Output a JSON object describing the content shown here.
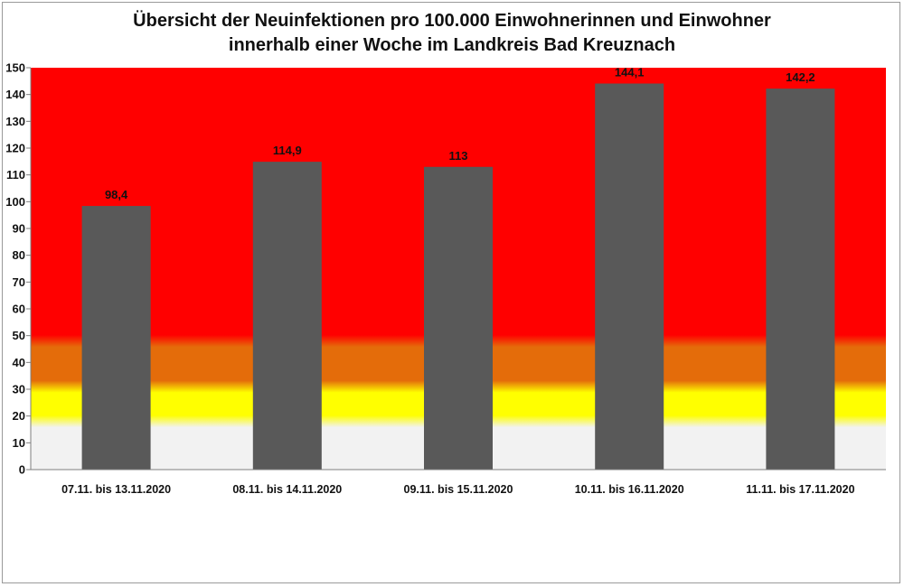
{
  "chart_data": {
    "type": "bar",
    "title": "Übersicht der Neuinfektionen pro 100.000 Einwohnerinnen und Einwohner",
    "subtitle": "innerhalb einer Woche im Landkreis Bad Kreuznach",
    "xlabel": "",
    "ylabel": "",
    "categories": [
      "07.11. bis 13.11.2020",
      "08.11. bis 14.11.2020",
      "09.11. bis 15.11.2020",
      "10.11. bis 16.11.2020",
      "11.11. bis 17.11.2020"
    ],
    "values": [
      98.4,
      114.9,
      113,
      144.1,
      142.2
    ],
    "data_labels": [
      "98,4",
      "114,9",
      "113",
      "144,1",
      "142,2"
    ],
    "ylim": [
      0,
      150
    ],
    "yticks": [
      0,
      10,
      20,
      30,
      40,
      50,
      60,
      70,
      80,
      90,
      100,
      110,
      120,
      130,
      140,
      150
    ],
    "grid": false,
    "legend": "none",
    "bar_color": "#595959",
    "background_bands": [
      {
        "from": 0,
        "to": 18,
        "color": "#f2f2f2"
      },
      {
        "from": 18,
        "to": 31,
        "color": "#ffff00"
      },
      {
        "from": 31,
        "to": 48,
        "color": "#e46c0a"
      },
      {
        "from": 48,
        "to": 150,
        "color": "#ff0000"
      }
    ]
  }
}
